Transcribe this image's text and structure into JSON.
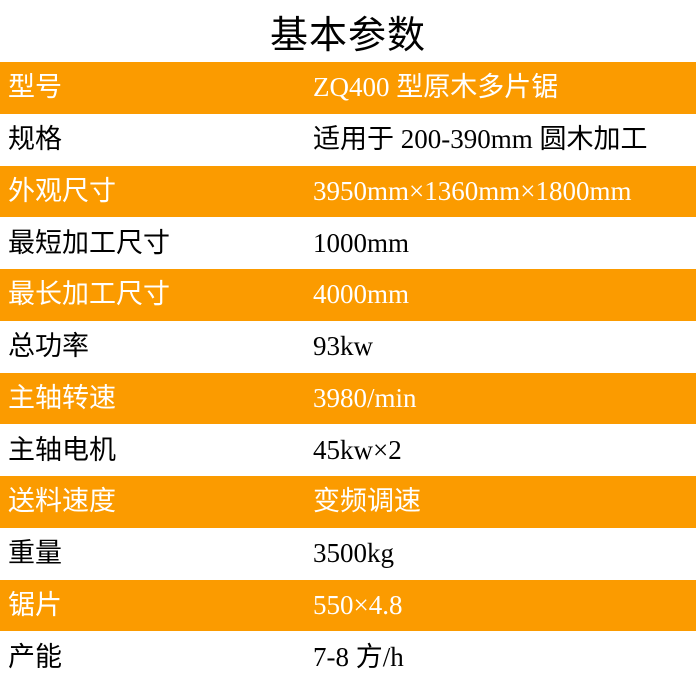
{
  "page": {
    "title": "基本参数"
  },
  "colors": {
    "accent_orange": "#FB9B00",
    "text_on_orange": "#FFFFFF",
    "text_on_white": "#000000"
  },
  "table": {
    "rows": [
      {
        "label": "型号",
        "value": "ZQ400 型原木多片锯"
      },
      {
        "label": "规格",
        "value": "适用于 200-390mm 圆木加工"
      },
      {
        "label": "外观尺寸",
        "value": "3950mm×1360mm×1800mm"
      },
      {
        "label": "最短加工尺寸",
        "value": "1000mm"
      },
      {
        "label": "最长加工尺寸",
        "value": "4000mm"
      },
      {
        "label": "总功率",
        "value": "93kw"
      },
      {
        "label": "主轴转速",
        "value": "3980/min"
      },
      {
        "label": "主轴电机",
        "value": "45kw×2"
      },
      {
        "label": "送料速度",
        "value": "变频调速"
      },
      {
        "label": "重量",
        "value": "3500kg"
      },
      {
        "label": "锯片",
        "value": "550×4.8"
      },
      {
        "label": "产能",
        "value": "7-8 方/h"
      }
    ]
  }
}
